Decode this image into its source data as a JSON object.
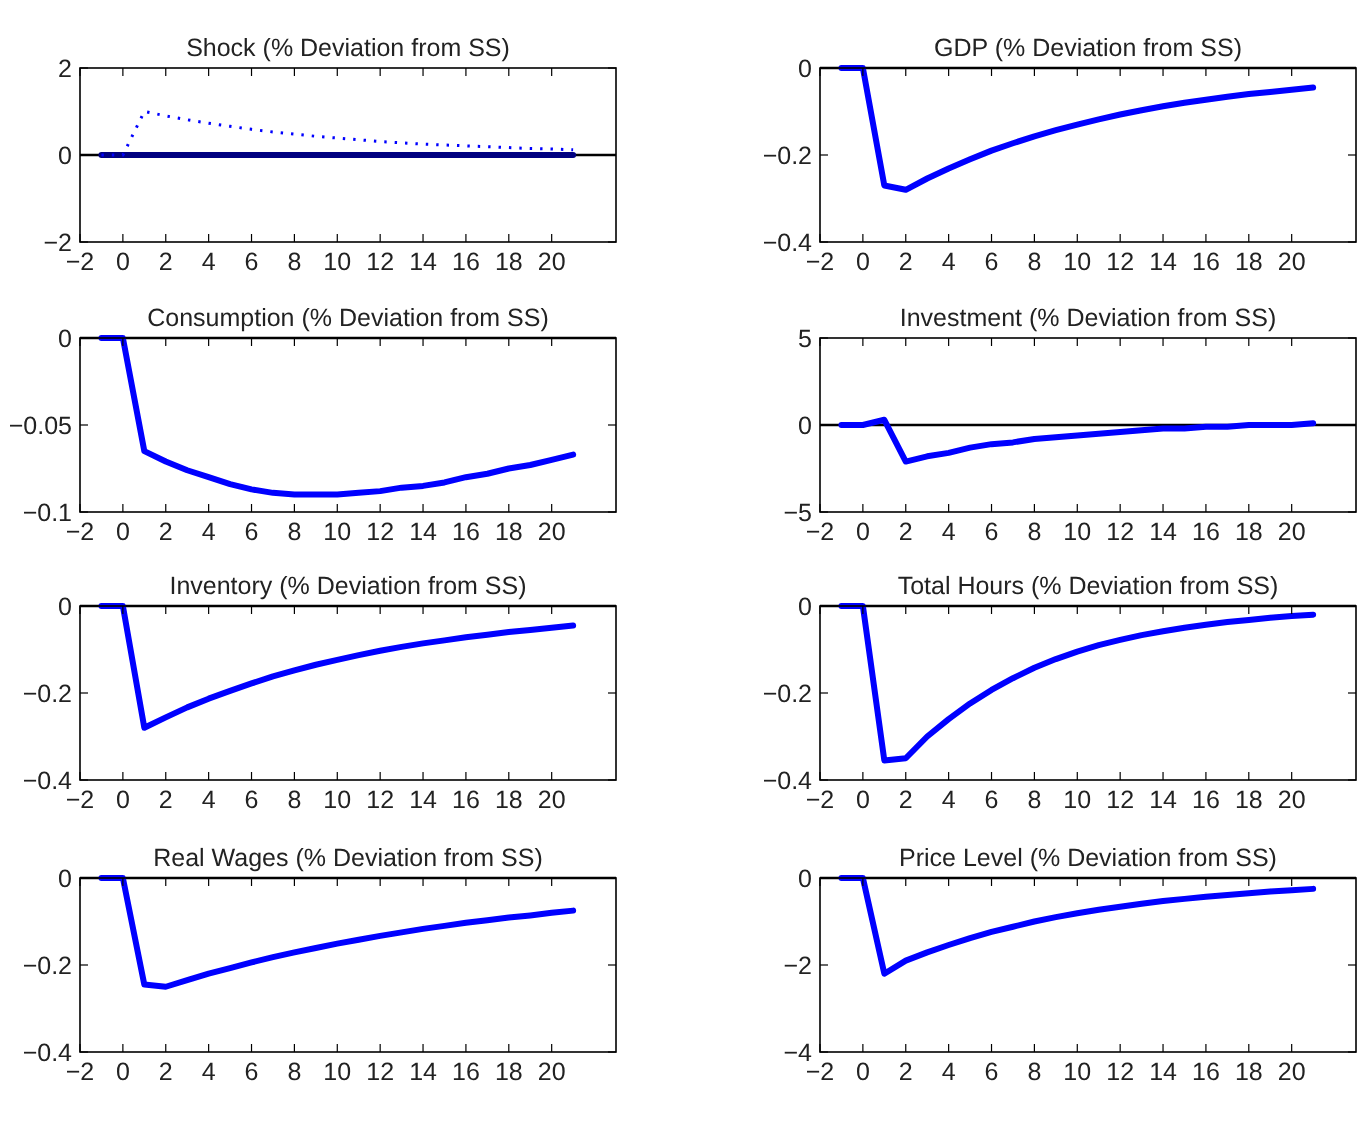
{
  "chart_data": [
    {
      "type": "line",
      "title": "Shock (% Deviation from SS)",
      "x": [
        -1,
        0,
        1,
        2,
        3,
        4,
        5,
        6,
        7,
        8,
        9,
        10,
        11,
        12,
        13,
        14,
        15,
        16,
        17,
        18,
        19,
        20,
        21
      ],
      "series": [
        {
          "color": "#000080",
          "line_style": "solid",
          "values": [
            0,
            0,
            0,
            0,
            0,
            0,
            0,
            0,
            0,
            0,
            0,
            0,
            0,
            0,
            0,
            0,
            0,
            0,
            0,
            0,
            0,
            0,
            0
          ]
        },
        {
          "color": "#0000ff",
          "line_style": "dotted",
          "values": [
            0,
            0,
            1.0,
            0.9,
            0.81,
            0.73,
            0.66,
            0.59,
            0.53,
            0.48,
            0.43,
            0.39,
            0.35,
            0.31,
            0.28,
            0.25,
            0.23,
            0.21,
            0.19,
            0.17,
            0.15,
            0.14,
            0.12
          ]
        }
      ],
      "xlim": [
        -2,
        23
      ],
      "xticks": [
        -2,
        0,
        2,
        4,
        6,
        8,
        10,
        12,
        14,
        16,
        18,
        20
      ],
      "ylim": [
        -2,
        2
      ],
      "yticks": [
        -2,
        0,
        2
      ],
      "ref_lines": [
        {
          "axis": "y",
          "value": 0,
          "color": "#000000"
        }
      ]
    },
    {
      "type": "line",
      "title": "GDP (% Deviation from SS)",
      "x": [
        -1,
        0,
        1,
        2,
        3,
        4,
        5,
        6,
        7,
        8,
        9,
        10,
        11,
        12,
        13,
        14,
        15,
        16,
        17,
        18,
        19,
        20,
        21
      ],
      "series": [
        {
          "color": "#0000ff",
          "line_style": "solid",
          "values": [
            0,
            0,
            -0.27,
            -0.28,
            -0.254,
            -0.231,
            -0.21,
            -0.19,
            -0.173,
            -0.157,
            -0.143,
            -0.13,
            -0.118,
            -0.107,
            -0.097,
            -0.088,
            -0.08,
            -0.073,
            -0.066,
            -0.06,
            -0.055,
            -0.05,
            -0.045
          ]
        }
      ],
      "xlim": [
        -2,
        23
      ],
      "xticks": [
        -2,
        0,
        2,
        4,
        6,
        8,
        10,
        12,
        14,
        16,
        18,
        20
      ],
      "ylim": [
        -0.4,
        0
      ],
      "yticks": [
        -0.4,
        -0.2,
        0
      ],
      "ref_lines": [
        {
          "axis": "y",
          "value": 0,
          "color": "#000000"
        }
      ]
    },
    {
      "type": "line",
      "title": "Consumption (% Deviation from SS)",
      "x": [
        -1,
        0,
        1,
        2,
        3,
        4,
        5,
        6,
        7,
        8,
        9,
        10,
        11,
        12,
        13,
        14,
        15,
        16,
        17,
        18,
        19,
        20,
        21
      ],
      "series": [
        {
          "color": "#0000ff",
          "line_style": "solid",
          "values": [
            0,
            0,
            -0.065,
            -0.071,
            -0.076,
            -0.08,
            -0.084,
            -0.087,
            -0.089,
            -0.09,
            -0.09,
            -0.09,
            -0.089,
            -0.088,
            -0.086,
            -0.085,
            -0.083,
            -0.08,
            -0.078,
            -0.075,
            -0.073,
            -0.07,
            -0.067
          ]
        }
      ],
      "xlim": [
        -2,
        23
      ],
      "xticks": [
        -2,
        0,
        2,
        4,
        6,
        8,
        10,
        12,
        14,
        16,
        18,
        20
      ],
      "ylim": [
        -0.1,
        0
      ],
      "yticks": [
        -0.1,
        -0.05,
        0
      ],
      "ref_lines": [
        {
          "axis": "y",
          "value": 0,
          "color": "#000000"
        }
      ]
    },
    {
      "type": "line",
      "title": "Investment (% Deviation from SS)",
      "x": [
        -1,
        0,
        1,
        2,
        3,
        4,
        5,
        6,
        7,
        8,
        9,
        10,
        11,
        12,
        13,
        14,
        15,
        16,
        17,
        18,
        19,
        20,
        21
      ],
      "series": [
        {
          "color": "#0000ff",
          "line_style": "solid",
          "values": [
            0,
            0,
            0.3,
            -2.1,
            -1.8,
            -1.6,
            -1.3,
            -1.1,
            -1.0,
            -0.8,
            -0.7,
            -0.6,
            -0.5,
            -0.4,
            -0.3,
            -0.2,
            -0.2,
            -0.1,
            -0.1,
            0,
            0,
            0,
            0.1
          ]
        }
      ],
      "xlim": [
        -2,
        23
      ],
      "xticks": [
        -2,
        0,
        2,
        4,
        6,
        8,
        10,
        12,
        14,
        16,
        18,
        20
      ],
      "ylim": [
        -5,
        5
      ],
      "yticks": [
        -5,
        0,
        5
      ],
      "ref_lines": [
        {
          "axis": "y",
          "value": 0,
          "color": "#000000"
        }
      ]
    },
    {
      "type": "line",
      "title": "Inventory (% Deviation from SS)",
      "x": [
        -1,
        0,
        1,
        2,
        3,
        4,
        5,
        6,
        7,
        8,
        9,
        10,
        11,
        12,
        13,
        14,
        15,
        16,
        17,
        18,
        19,
        20,
        21
      ],
      "series": [
        {
          "color": "#0000ff",
          "line_style": "solid",
          "values": [
            0,
            0,
            -0.28,
            -0.256,
            -0.233,
            -0.213,
            -0.195,
            -0.178,
            -0.162,
            -0.148,
            -0.135,
            -0.124,
            -0.113,
            -0.103,
            -0.094,
            -0.086,
            -0.079,
            -0.072,
            -0.066,
            -0.06,
            -0.055,
            -0.05,
            -0.045
          ]
        }
      ],
      "xlim": [
        -2,
        23
      ],
      "xticks": [
        -2,
        0,
        2,
        4,
        6,
        8,
        10,
        12,
        14,
        16,
        18,
        20
      ],
      "ylim": [
        -0.4,
        0
      ],
      "yticks": [
        -0.4,
        -0.2,
        0
      ],
      "ref_lines": [
        {
          "axis": "y",
          "value": 0,
          "color": "#000000"
        }
      ]
    },
    {
      "type": "line",
      "title": "Total Hours (% Deviation from SS)",
      "x": [
        -1,
        0,
        1,
        2,
        3,
        4,
        5,
        6,
        7,
        8,
        9,
        10,
        11,
        12,
        13,
        14,
        15,
        16,
        17,
        18,
        19,
        20,
        21
      ],
      "series": [
        {
          "color": "#0000ff",
          "line_style": "solid",
          "values": [
            0,
            0,
            -0.355,
            -0.35,
            -0.3,
            -0.26,
            -0.224,
            -0.193,
            -0.166,
            -0.142,
            -0.122,
            -0.105,
            -0.09,
            -0.078,
            -0.067,
            -0.058,
            -0.05,
            -0.043,
            -0.037,
            -0.032,
            -0.027,
            -0.023,
            -0.02
          ]
        }
      ],
      "xlim": [
        -2,
        23
      ],
      "xticks": [
        -2,
        0,
        2,
        4,
        6,
        8,
        10,
        12,
        14,
        16,
        18,
        20
      ],
      "ylim": [
        -0.4,
        0
      ],
      "yticks": [
        -0.4,
        -0.2,
        0
      ],
      "ref_lines": [
        {
          "axis": "y",
          "value": 0,
          "color": "#000000"
        }
      ]
    },
    {
      "type": "line",
      "title": "Real Wages (% Deviation from SS)",
      "x": [
        -1,
        0,
        1,
        2,
        3,
        4,
        5,
        6,
        7,
        8,
        9,
        10,
        11,
        12,
        13,
        14,
        15,
        16,
        17,
        18,
        19,
        20,
        21
      ],
      "series": [
        {
          "color": "#0000ff",
          "line_style": "solid",
          "values": [
            0,
            0,
            -0.245,
            -0.25,
            -0.235,
            -0.22,
            -0.207,
            -0.194,
            -0.182,
            -0.171,
            -0.161,
            -0.151,
            -0.142,
            -0.133,
            -0.125,
            -0.117,
            -0.11,
            -0.103,
            -0.097,
            -0.091,
            -0.086,
            -0.08,
            -0.075
          ]
        }
      ],
      "xlim": [
        -2,
        23
      ],
      "xticks": [
        -2,
        0,
        2,
        4,
        6,
        8,
        10,
        12,
        14,
        16,
        18,
        20
      ],
      "ylim": [
        -0.4,
        0
      ],
      "yticks": [
        -0.4,
        -0.2,
        0
      ],
      "ref_lines": [
        {
          "axis": "y",
          "value": 0,
          "color": "#000000"
        }
      ]
    },
    {
      "type": "line",
      "title": "Price Level (% Deviation from SS)",
      "x": [
        -1,
        0,
        1,
        2,
        3,
        4,
        5,
        6,
        7,
        8,
        9,
        10,
        11,
        12,
        13,
        14,
        15,
        16,
        17,
        18,
        19,
        20,
        21
      ],
      "series": [
        {
          "color": "#0000ff",
          "line_style": "solid",
          "values": [
            0,
            0,
            -2.2,
            -1.9,
            -1.71,
            -1.54,
            -1.38,
            -1.24,
            -1.12,
            -1.0,
            -0.9,
            -0.81,
            -0.73,
            -0.66,
            -0.59,
            -0.53,
            -0.48,
            -0.43,
            -0.39,
            -0.35,
            -0.31,
            -0.28,
            -0.25
          ]
        }
      ],
      "xlim": [
        -2,
        23
      ],
      "xticks": [
        -2,
        0,
        2,
        4,
        6,
        8,
        10,
        12,
        14,
        16,
        18,
        20
      ],
      "ylim": [
        -4,
        0
      ],
      "yticks": [
        -4,
        -2,
        0
      ],
      "ref_lines": [
        {
          "axis": "y",
          "value": 0,
          "color": "#000000"
        }
      ]
    }
  ]
}
